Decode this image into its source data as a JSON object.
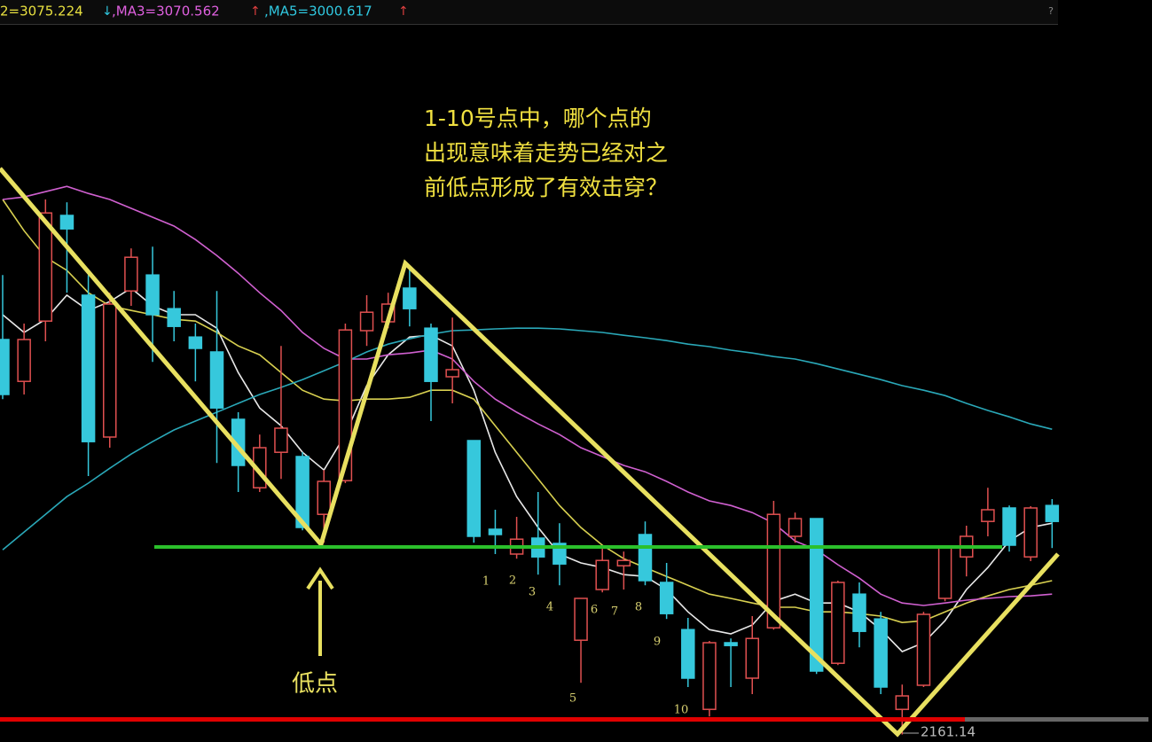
{
  "chart_data": {
    "type": "candlestick",
    "header": [
      {
        "text": "2=3075.224",
        "arrow": "↓",
        "color": "#e8e040",
        "arrow_color": "#30c8e0"
      },
      {
        "text": ",MA3=3070.562",
        "arrow": "↑",
        "color": "#e060e0",
        "arrow_color": "#e04040"
      },
      {
        "text": ",MA5=3000.617",
        "arrow": "↑",
        "color": "#30c8e0",
        "arrow_color": "#e04040"
      }
    ],
    "help": "?",
    "question": [
      "1-10号点中，哪个点的",
      "出现意味着走势已经对之",
      "前低点形成了有效击穿？"
    ],
    "point_labels": [
      "1",
      "2",
      "3",
      "4",
      "5",
      "6",
      "7",
      "8",
      "9",
      "10"
    ],
    "low_point_label": "低点",
    "ylim": [
      2140,
      4157.5
    ],
    "up_color": "#e05050",
    "down_color": "#36c8dc",
    "candles": {
      "open": [
        3275,
        3157,
        3327,
        3625,
        3400,
        3000,
        3412,
        3457,
        3362,
        3282,
        3240,
        3050,
        2857,
        2957,
        2945,
        2782,
        2877,
        3300,
        3325,
        3420,
        3307,
        3170,
        2990,
        2740,
        2670,
        2715,
        2700,
        2427,
        2570,
        2637,
        2725,
        2590,
        2457,
        2232,
        2420,
        2320,
        2462,
        2720,
        2770,
        2362,
        2557,
        2487,
        2232,
        2300,
        2545,
        2662,
        2762,
        2800,
        2662,
        2807
      ],
      "high": [
        3457,
        3320,
        3670,
        3662,
        3457,
        3407,
        3532,
        3537,
        3412,
        3320,
        3412,
        3070,
        3007,
        3257,
        2957,
        2907,
        3320,
        3400,
        3407,
        3475,
        3320,
        3337,
        2990,
        2795,
        2775,
        2845,
        2757,
        2545,
        2695,
        2677,
        2762,
        2645,
        2490,
        2425,
        2432,
        2495,
        2820,
        2787,
        2770,
        2595,
        2590,
        2507,
        2302,
        2507,
        2690,
        2750,
        2857,
        2807,
        2805,
        2825
      ],
      "low": [
        3107,
        3120,
        3270,
        3407,
        2890,
        2970,
        3370,
        3212,
        3270,
        3157,
        2927,
        2845,
        2845,
        2882,
        2737,
        2702,
        2870,
        3257,
        3307,
        3312,
        3045,
        3095,
        2702,
        2670,
        2657,
        2612,
        2582,
        2307,
        2562,
        2570,
        2582,
        2487,
        2295,
        2212,
        2295,
        2275,
        2457,
        2702,
        2332,
        2357,
        2407,
        2275,
        2161.14,
        2295,
        2537,
        2607,
        2720,
        2677,
        2650,
        2687
      ],
      "close": [
        3120,
        3275,
        3632,
        3587,
        2987,
        3375,
        3507,
        3345,
        3312,
        3250,
        3082,
        2920,
        2970,
        3025,
        2745,
        2875,
        3302,
        3352,
        3375,
        3362,
        3157,
        3190,
        2720,
        2725,
        2712,
        2662,
        2642,
        2545,
        2652,
        2652,
        2595,
        2502,
        2320,
        2420,
        2412,
        2432,
        2782,
        2770,
        2340,
        2590,
        2452,
        2295,
        2270,
        2500,
        2687,
        2720,
        2795,
        2695,
        2800,
        2762
      ]
    },
    "lines": [
      {
        "color": "#e8e8e8",
        "values": [
          3345,
          3295,
          3332,
          3400,
          3357,
          3382,
          3420,
          3370,
          3345,
          3345,
          3307,
          3182,
          3082,
          3032,
          2957,
          2907,
          3007,
          3145,
          3232,
          3282,
          3287,
          3257,
          3132,
          2957,
          2832,
          2745,
          2670,
          2645,
          2632,
          2612,
          2607,
          2570,
          2507,
          2457,
          2445,
          2470,
          2537,
          2557,
          2532,
          2532,
          2507,
          2457,
          2395,
          2420,
          2482,
          2570,
          2632,
          2707,
          2745,
          2757
        ]
      },
      {
        "color": "#d8d050",
        "values": [
          3670,
          3582,
          3507,
          3470,
          3407,
          3370,
          3357,
          3345,
          3332,
          3327,
          3295,
          3257,
          3232,
          3182,
          3132,
          3107,
          3102,
          3107,
          3107,
          3112,
          3132,
          3132,
          3107,
          3032,
          2957,
          2882,
          2807,
          2745,
          2695,
          2657,
          2632,
          2607,
          2582,
          2557,
          2545,
          2532,
          2520,
          2520,
          2507,
          2507,
          2502,
          2495,
          2477,
          2482,
          2507,
          2532,
          2552,
          2570,
          2582,
          2595
        ]
      },
      {
        "color": "#d060d0",
        "values": [
          3670,
          3677,
          3692,
          3707,
          3687,
          3670,
          3645,
          3620,
          3595,
          3557,
          3512,
          3462,
          3407,
          3357,
          3295,
          3250,
          3220,
          3220,
          3232,
          3237,
          3245,
          3220,
          3157,
          3107,
          3070,
          3037,
          3007,
          2970,
          2945,
          2920,
          2902,
          2875,
          2845,
          2820,
          2807,
          2787,
          2757,
          2707,
          2682,
          2640,
          2602,
          2557,
          2532,
          2525,
          2532,
          2540,
          2545,
          2550,
          2552,
          2557
        ]
      },
      {
        "color": "#2aa8b8",
        "values": [
          2682,
          2732,
          2782,
          2832,
          2870,
          2912,
          2952,
          2987,
          3020,
          3045,
          3070,
          3095,
          3120,
          3140,
          3162,
          3187,
          3212,
          3240,
          3262,
          3277,
          3290,
          3300,
          3302,
          3305,
          3307,
          3307,
          3305,
          3300,
          3295,
          3287,
          3280,
          3272,
          3262,
          3255,
          3245,
          3237,
          3227,
          3220,
          3207,
          3192,
          3177,
          3162,
          3145,
          3132,
          3117,
          3095,
          3075,
          3057,
          3037,
          3022
        ]
      }
    ]
  }
}
